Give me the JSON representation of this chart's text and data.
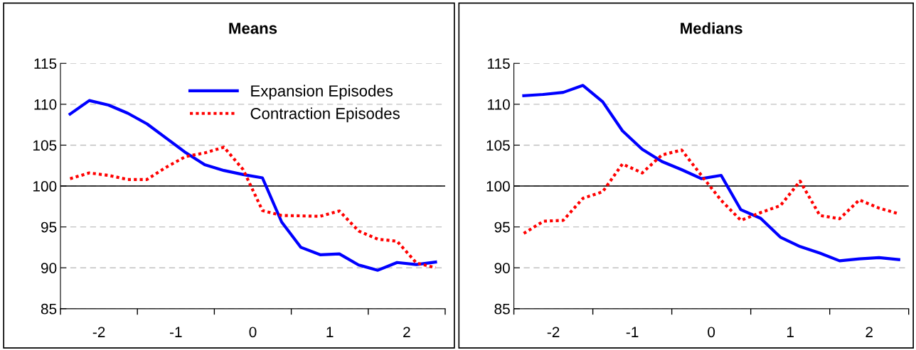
{
  "chart_data": [
    {
      "type": "line",
      "title": "Means",
      "x": [
        -2.375,
        -2.125,
        -1.875,
        -1.625,
        -1.375,
        -1.125,
        -0.875,
        -0.625,
        -0.375,
        -0.125,
        0.125,
        0.375,
        0.625,
        0.875,
        1.125,
        1.375,
        1.625,
        1.875,
        2.125,
        2.375
      ],
      "series": [
        {
          "name": "Expansion Episodes",
          "color": "#0000ff",
          "line_style": "solid",
          "values": [
            108.8,
            110.45,
            109.9,
            108.9,
            107.6,
            105.85,
            104.1,
            102.6,
            101.9,
            101.4,
            101.0,
            95.6,
            92.5,
            91.6,
            91.7,
            90.35,
            89.7,
            90.65,
            90.4,
            90.7
          ]
        },
        {
          "name": "Contraction Episodes",
          "color": "#ff0000",
          "line_style": "dotted",
          "values": [
            100.9,
            101.6,
            101.3,
            100.8,
            100.8,
            102.3,
            103.6,
            104.05,
            104.75,
            102.0,
            97.0,
            96.4,
            96.35,
            96.3,
            96.95,
            94.5,
            93.5,
            93.25,
            90.6,
            90.0
          ]
        }
      ],
      "xlim": [
        -2.5,
        2.5
      ],
      "xticks": [
        {
          "value": -2.5,
          "label": null
        },
        -2,
        {
          "value": -1.5,
          "label": null
        },
        -1,
        {
          "value": -0.5,
          "label": null
        },
        0,
        {
          "value": 0.5,
          "label": null
        },
        1,
        {
          "value": 1.5,
          "label": null
        },
        2,
        {
          "value": 2.5,
          "label": null
        }
      ],
      "ylim": [
        85,
        115
      ],
      "yticks": [
        85,
        90,
        95,
        100,
        105,
        110,
        115
      ],
      "grid": "y",
      "legend": "top right",
      "ref_lines": [
        {
          "axis": "y",
          "value": 100,
          "color": "#000000",
          "line_style": "solid"
        }
      ]
    },
    {
      "type": "line",
      "title": "Medians",
      "x": [
        -2.375,
        -2.125,
        -1.875,
        -1.625,
        -1.375,
        -1.125,
        -0.875,
        -0.625,
        -0.375,
        -0.125,
        0.125,
        0.375,
        0.625,
        0.875,
        1.125,
        1.375,
        1.625,
        1.875,
        2.125,
        2.375
      ],
      "series": [
        {
          "color": "#0000ff",
          "line_style": "solid",
          "values": [
            111.05,
            111.2,
            111.45,
            112.3,
            110.3,
            106.75,
            104.5,
            103.0,
            102.0,
            100.9,
            101.3,
            97.1,
            96.05,
            93.75,
            92.6,
            91.8,
            90.85,
            91.1,
            91.25,
            91.0
          ]
        },
        {
          "color": "#ff0000",
          "line_style": "dotted",
          "values": [
            94.2,
            95.7,
            95.8,
            98.5,
            99.3,
            102.7,
            101.6,
            103.8,
            104.4,
            101.3,
            98.25,
            95.8,
            96.75,
            97.6,
            100.6,
            96.4,
            96.0,
            98.3,
            97.3,
            96.6
          ]
        }
      ],
      "xlim": [
        -2.5,
        2.5
      ],
      "xticks": [
        {
          "value": -2.5,
          "label": null
        },
        -2,
        {
          "value": -1.5,
          "label": null
        },
        -1,
        {
          "value": -0.5,
          "label": null
        },
        0,
        {
          "value": 0.5,
          "label": null
        },
        1,
        {
          "value": 1.5,
          "label": null
        },
        2,
        {
          "value": 2.5,
          "label": null
        }
      ],
      "ylim": [
        85,
        115
      ],
      "yticks": [
        85,
        90,
        95,
        100,
        105,
        110,
        115
      ],
      "grid": "y",
      "ref_lines": [
        {
          "axis": "y",
          "value": 100,
          "color": "#000000",
          "line_style": "solid"
        }
      ]
    }
  ]
}
